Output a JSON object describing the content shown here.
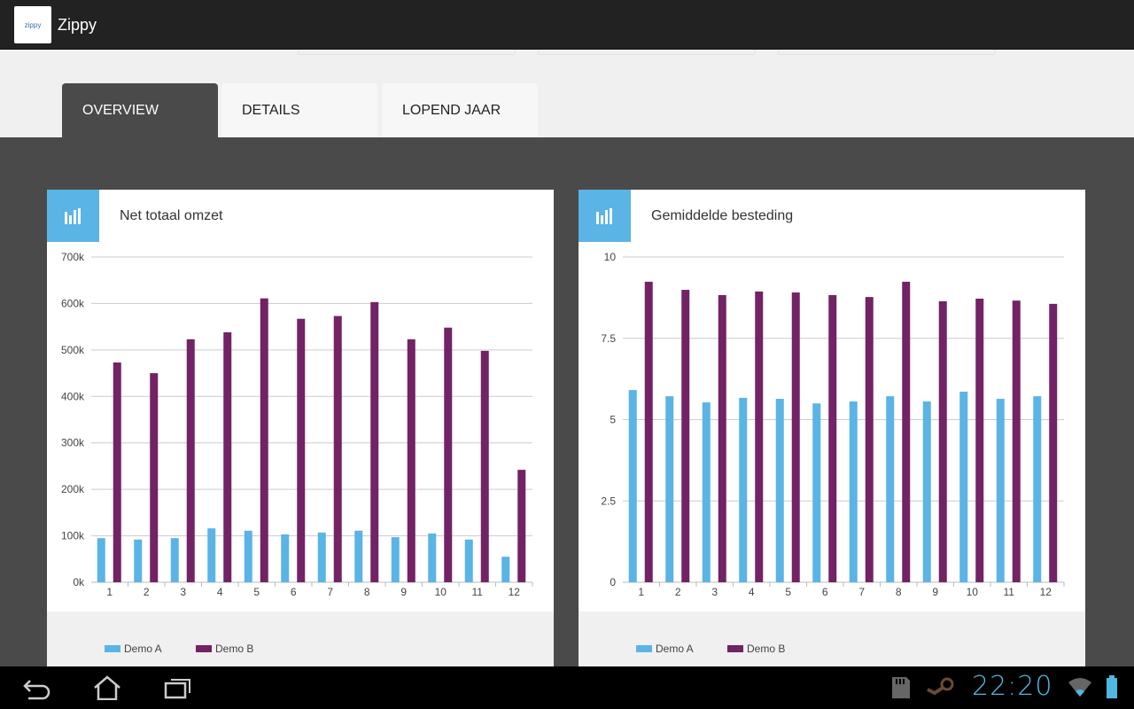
{
  "app": {
    "title": "Zippy",
    "logo_text": "zippy"
  },
  "tabs": [
    {
      "label": "OVERVIEW",
      "active": true
    },
    {
      "label": "DETAILS"
    },
    {
      "label": "LOPEND JAAR"
    }
  ],
  "colors": {
    "demo_a": "#5ab4e5",
    "demo_b": "#722265"
  },
  "status": {
    "time": "22:20"
  },
  "chart_data": [
    {
      "type": "bar",
      "title": "Net totaal omzet",
      "categories": [
        "1",
        "2",
        "3",
        "4",
        "5",
        "6",
        "7",
        "8",
        "9",
        "10",
        "11",
        "12"
      ],
      "yticks": [
        "0k",
        "100k",
        "200k",
        "300k",
        "400k",
        "500k",
        "600k",
        "700k"
      ],
      "ylim": [
        0,
        700000
      ],
      "series": [
        {
          "name": "Demo A",
          "values": [
            95000,
            92000,
            95000,
            116000,
            111000,
            103000,
            107000,
            111000,
            97000,
            105000,
            92000,
            55000
          ]
        },
        {
          "name": "Demo B",
          "values": [
            473000,
            450000,
            523000,
            538000,
            611000,
            567000,
            573000,
            603000,
            523000,
            548000,
            498000,
            242000
          ]
        }
      ],
      "legend": "bottom-left",
      "grid": true
    },
    {
      "type": "bar",
      "title": "Gemiddelde besteding",
      "categories": [
        "1",
        "2",
        "3",
        "4",
        "5",
        "6",
        "7",
        "8",
        "9",
        "10",
        "11",
        "12"
      ],
      "yticks": [
        "0",
        "2.5",
        "5",
        "7.5",
        "10"
      ],
      "ylim": [
        0,
        10
      ],
      "series": [
        {
          "name": "Demo A",
          "values": [
            5.91,
            5.72,
            5.53,
            5.67,
            5.64,
            5.5,
            5.56,
            5.72,
            5.56,
            5.86,
            5.64,
            5.72
          ]
        },
        {
          "name": "Demo B",
          "values": [
            9.24,
            8.99,
            8.83,
            8.94,
            8.91,
            8.83,
            8.77,
            9.24,
            8.64,
            8.72,
            8.66,
            8.56
          ]
        }
      ],
      "legend": "bottom-left",
      "grid": true
    }
  ]
}
